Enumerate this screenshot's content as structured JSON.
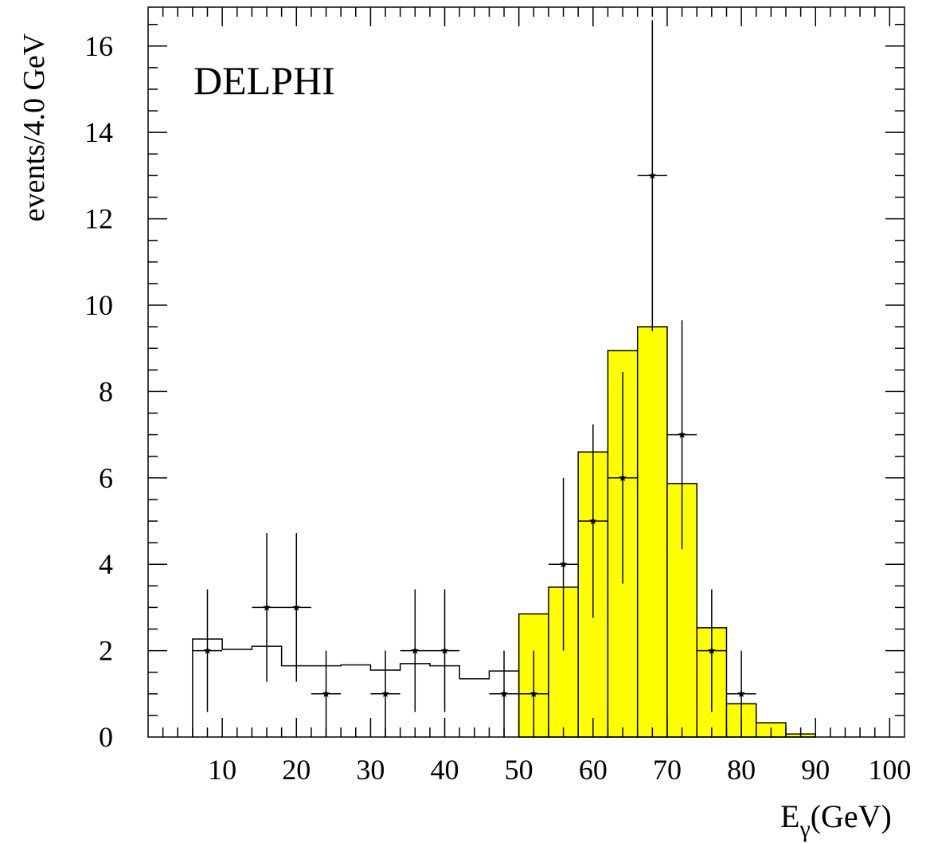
{
  "chart_data": {
    "type": "bar",
    "title": "DELPHI",
    "xlabel_main": "E",
    "xlabel_sub": "γ",
    "xlabel_units": "(GeV)",
    "ylabel": "events/4.0 GeV",
    "xlim": [
      0,
      102
    ],
    "ylim": [
      0,
      16.9
    ],
    "x_ticks": [
      10,
      20,
      30,
      40,
      50,
      60,
      70,
      80,
      90,
      100
    ],
    "y_ticks": [
      0,
      2,
      4,
      6,
      8,
      10,
      12,
      14,
      16
    ],
    "grid": false,
    "background_histogram": {
      "bin_edges": [
        6,
        10,
        14,
        18,
        22,
        26,
        30,
        34,
        38,
        42,
        46,
        50
      ],
      "values": [
        2.27,
        2.03,
        2.1,
        1.65,
        1.65,
        1.67,
        1.55,
        1.7,
        1.65,
        1.35,
        1.53
      ]
    },
    "signal_histogram": {
      "color": "#ffff00",
      "bin_edges": [
        50,
        54,
        58,
        62,
        66,
        70,
        74,
        78,
        82,
        86,
        90
      ],
      "values": [
        2.85,
        3.47,
        6.6,
        8.95,
        9.5,
        5.87,
        2.53,
        0.77,
        0.33,
        0.07
      ]
    },
    "data_points": {
      "x": [
        8,
        16,
        20,
        24,
        32,
        36,
        40,
        48,
        52,
        56,
        60,
        64,
        68,
        72,
        76,
        80
      ],
      "y": [
        2,
        3,
        3,
        1,
        1,
        2,
        2,
        1,
        1,
        4,
        5,
        6,
        13,
        7,
        2,
        1
      ],
      "x_err": 2,
      "y_err_low": [
        1.42,
        1.72,
        1.72,
        1,
        1,
        1.42,
        1.42,
        1,
        1,
        2,
        2.24,
        2.45,
        3.6,
        2.65,
        1.42,
        1
      ],
      "y_err_high": [
        1.42,
        1.72,
        1.72,
        1,
        1,
        1.42,
        1.42,
        1,
        1,
        2,
        2.24,
        2.45,
        3.6,
        2.65,
        1.42,
        1
      ]
    }
  }
}
